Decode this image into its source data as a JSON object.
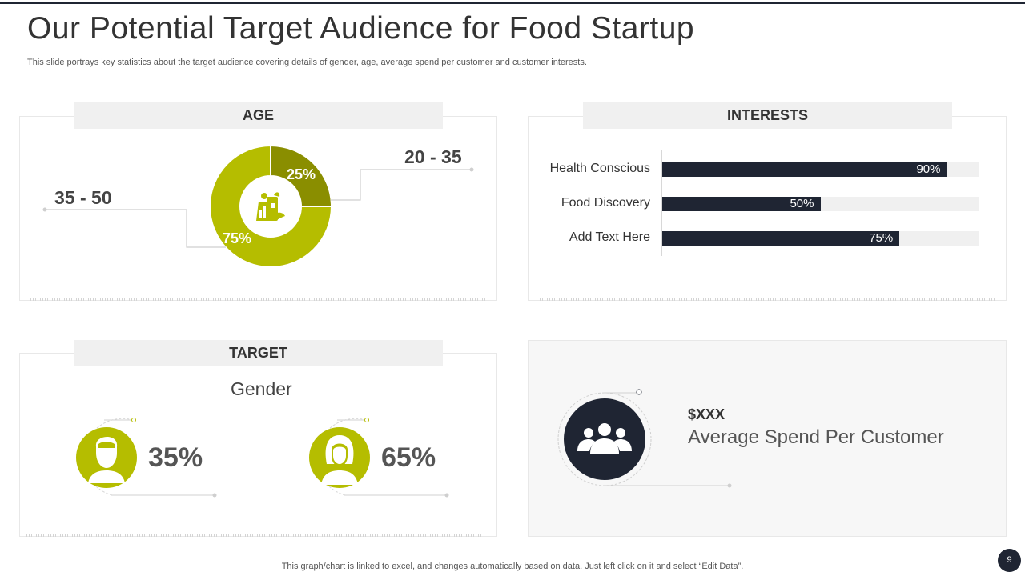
{
  "title": "Our Potential Target Audience for Food Startup",
  "subtitle": "This slide portrays key statistics about the target audience covering details of gender, age, average spend per customer and customer interests.",
  "age": {
    "heading": "AGE",
    "group_a_label": "20 - 35",
    "group_a_pct": "25%",
    "group_b_label": "35 - 50",
    "group_b_pct": "75%",
    "icon": "grocery-bag-icon"
  },
  "interests": {
    "heading": "INTERESTS",
    "items": [
      {
        "label": "Health Conscious",
        "value": 90,
        "value_label": "90%"
      },
      {
        "label": "Food Discovery",
        "value": 50,
        "value_label": "50%"
      },
      {
        "label": "Add Text Here",
        "value": 75,
        "value_label": "75%"
      }
    ]
  },
  "target": {
    "heading": "TARGET",
    "gender_title": "Gender",
    "male_pct": "35%",
    "female_pct": "65%",
    "male_icon": "male-user-icon",
    "female_icon": "female-user-icon"
  },
  "spend": {
    "value": "$XXX",
    "label": "Average Spend Per Customer",
    "icon": "group-users-icon"
  },
  "footer": "This graph/chart is linked to excel, and changes automatically based on data. Just left click on it and select “Edit Data”.",
  "page_number": "9",
  "colors": {
    "accent_green": "#b5bd00",
    "olive": "#8a8e00",
    "navy": "#1f2533",
    "panel_tab": "#f0f0f0"
  },
  "chart_data": [
    {
      "type": "pie",
      "title": "AGE",
      "categories": [
        "20 - 35",
        "35 - 50"
      ],
      "values": [
        25,
        75
      ]
    },
    {
      "type": "bar",
      "title": "INTERESTS",
      "categories": [
        "Health Conscious",
        "Food Discovery",
        "Add Text Here"
      ],
      "values": [
        90,
        50,
        75
      ],
      "ylim": [
        0,
        100
      ]
    }
  ]
}
